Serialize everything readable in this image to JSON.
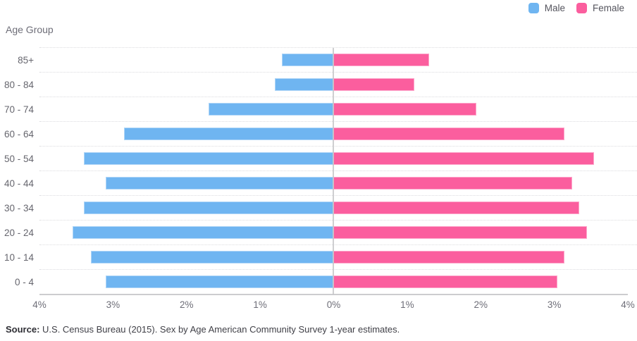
{
  "legend": {
    "items": [
      {
        "label": "Male",
        "color": "#6FB5F1"
      },
      {
        "label": "Female",
        "color": "#FB5E9E"
      }
    ]
  },
  "y_axis_title": "Age Group",
  "chart_data": {
    "type": "bar",
    "subtype": "population-pyramid",
    "orientation": "horizontal-diverging",
    "title": "",
    "y_axis_title": "Age Group",
    "categories": [
      "85+",
      "80 - 84",
      "70 - 74",
      "60 - 64",
      "50 - 54",
      "40 - 44",
      "30 - 34",
      "20 - 24",
      "10 - 14",
      "0 - 4"
    ],
    "series": [
      {
        "name": "Male",
        "color": "#6FB5F1",
        "side": "left",
        "values": [
          0.7,
          0.8,
          1.7,
          2.85,
          3.4,
          3.1,
          3.4,
          3.55,
          3.3,
          3.1
        ]
      },
      {
        "name": "Female",
        "color": "#FB5E9E",
        "side": "right",
        "values": [
          1.3,
          1.1,
          1.95,
          3.15,
          3.55,
          3.25,
          3.35,
          3.45,
          3.15,
          3.05
        ]
      }
    ],
    "unit": "%",
    "x_axis_ticks": [
      "4%",
      "3%",
      "2%",
      "1%",
      "0%",
      "1%",
      "2%",
      "3%",
      "4%"
    ],
    "xlim_abs": 4,
    "grid": "dotted-horizontal",
    "legend_position": "top-right"
  },
  "footer": {
    "source_label": "Source:",
    "source_text": " U.S. Census Bureau (2015). Sex by Age American Community Survey 1-year estimates."
  }
}
